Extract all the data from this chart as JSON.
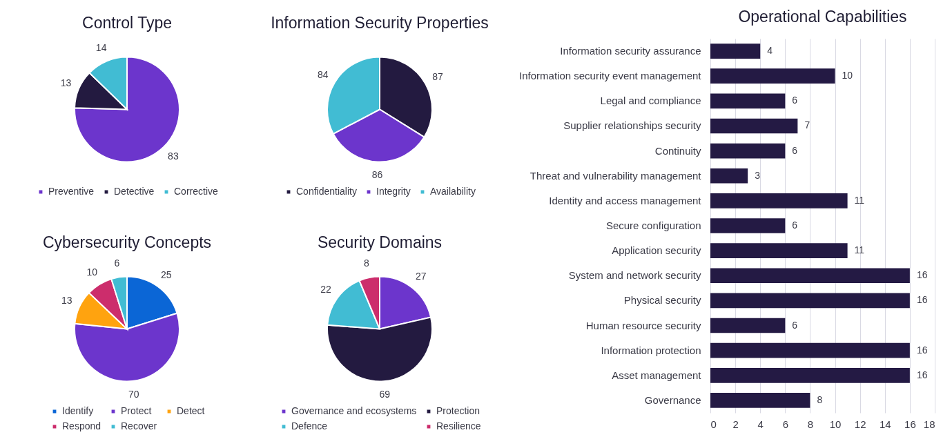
{
  "chart_data": [
    {
      "type": "pie",
      "title": "Control Type",
      "categories": [
        "Preventive",
        "Detective",
        "Corrective"
      ],
      "values": [
        83,
        13,
        14
      ],
      "colors": [
        "#6c35cc",
        "#231a40",
        "#41bcd3"
      ],
      "data_labels": true,
      "legend": "bottom"
    },
    {
      "type": "pie",
      "title": "Information Security Properties",
      "categories": [
        "Confidentiality",
        "Integrity",
        "Availability"
      ],
      "values": [
        87,
        86,
        84
      ],
      "colors": [
        "#231a40",
        "#6c35cc",
        "#41bcd3"
      ],
      "data_labels": true,
      "legend": "bottom"
    },
    {
      "type": "pie",
      "title": "Cybersecurity Concepts",
      "categories": [
        "Identify",
        "Protect",
        "Detect",
        "Respond",
        "Recover"
      ],
      "values": [
        25,
        70,
        13,
        10,
        6
      ],
      "colors": [
        "#0b66d6",
        "#6c35cc",
        "#ffa30f",
        "#cc2d6c",
        "#41bcd3"
      ],
      "data_labels": true,
      "legend": "bottom"
    },
    {
      "type": "pie",
      "title": "Security Domains",
      "categories": [
        "Governance and ecosystems",
        "Protection",
        "Defence",
        "Resilience"
      ],
      "values": [
        27,
        69,
        22,
        8
      ],
      "colors": [
        "#6c35cc",
        "#231a40",
        "#41bcd3",
        "#cc2d6c"
      ],
      "data_labels": true,
      "legend": "bottom"
    },
    {
      "type": "bar",
      "title": "Operational Capabilities",
      "orientation": "horizontal",
      "categories": [
        "Information security assurance",
        "Information security event management",
        "Legal and compliance",
        "Supplier relationships security",
        "Continuity",
        "Threat and vulnerability management",
        "Identity and access management",
        "Secure configuration",
        "Application security",
        "System and network security",
        "Physical security",
        "Human resource security",
        "Information protection",
        "Asset management",
        "Governance"
      ],
      "values": [
        4,
        10,
        6,
        7,
        6,
        3,
        11,
        6,
        11,
        16,
        16,
        6,
        16,
        16,
        8
      ],
      "color": "#241a44",
      "xlim": [
        0,
        18
      ],
      "xticks": [
        0,
        2,
        4,
        6,
        8,
        10,
        12,
        14,
        16,
        18
      ],
      "grid": "x",
      "data_labels": true
    }
  ]
}
